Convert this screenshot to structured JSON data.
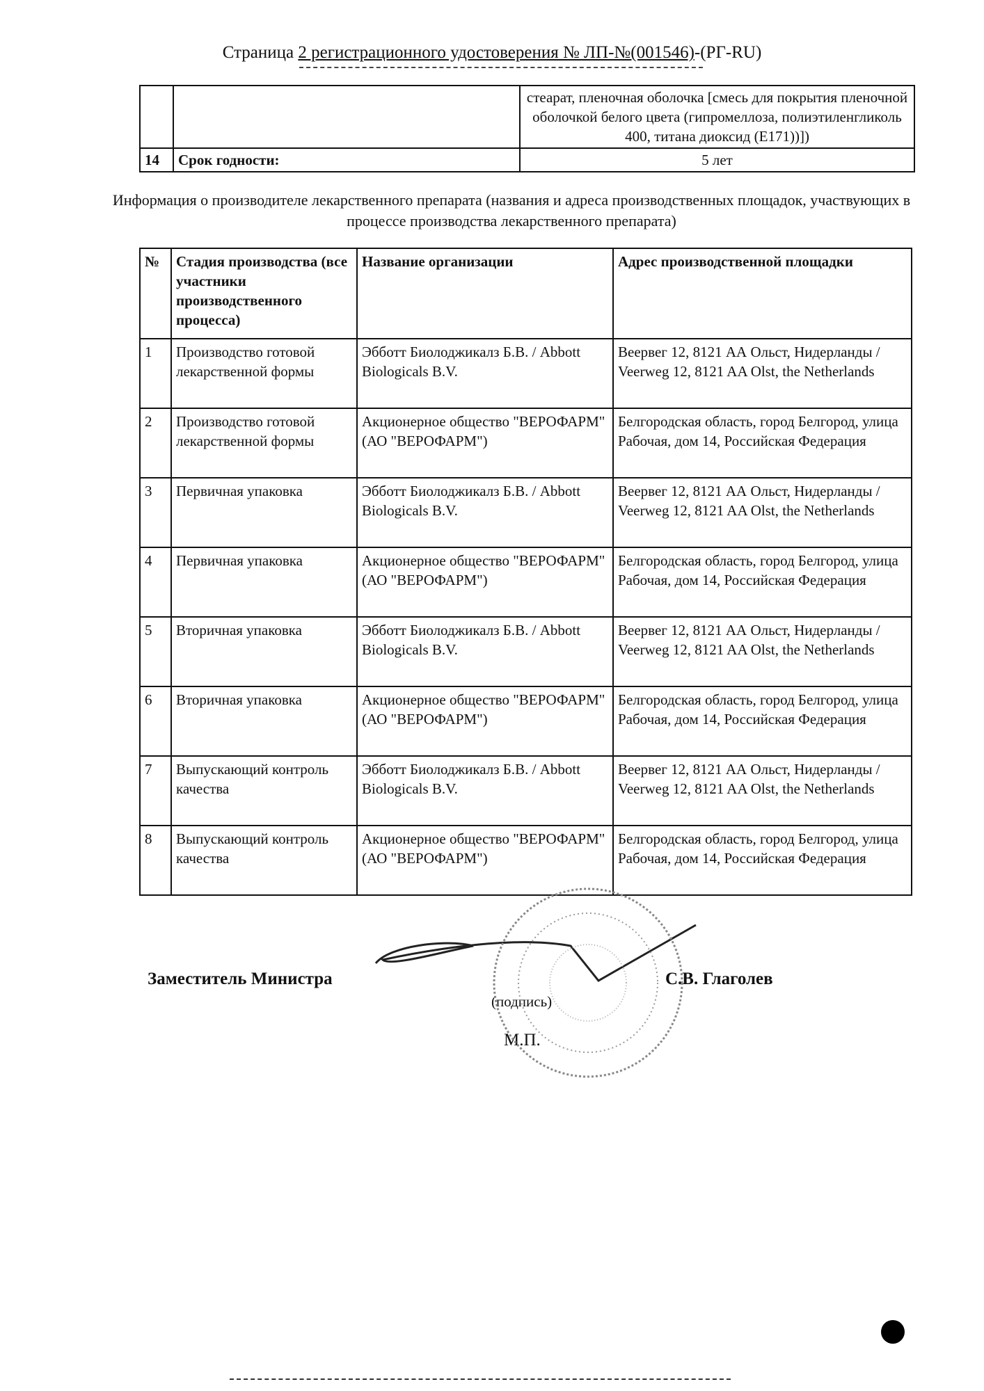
{
  "header": {
    "title_prefix": "Страница ",
    "title_underlined": "2 регистрационного удостоверения № ЛП-№(001546)",
    "title_suffix": "-(РГ-RU)"
  },
  "top_table": {
    "continuation_text": "стеарат, пленочная оболочка [смесь для покрытия пленочной оболочкой белого цвета (гипромеллоза, полиэтиленгликоль 400, титана диоксид (E171))])",
    "row14": {
      "num": "14",
      "label": "Срок годности:",
      "value": "5 лет"
    }
  },
  "info_heading": "Информация о производителе лекарственного препарата (названия и адреса производственных площадок, участвующих в процессе производства лекарственного препарата)",
  "manufacturers": {
    "headers": [
      "№",
      "Стадия производства (все участники производственного процесса)",
      "Название организации",
      "Адрес производственной площадки"
    ],
    "rows": [
      {
        "num": "1",
        "stage": "Производство готовой лекарственной формы",
        "org": "Эбботт Биолоджикалз Б.В. / Abbott Biologicals B.V.",
        "address": "Веервег 12, 8121 АА Ольст, Нидерланды / Veerweg 12, 8121 AA Olst, the Netherlands"
      },
      {
        "num": "2",
        "stage": "Производство готовой лекарственной формы",
        "org": "Акционерное общество \"ВЕРОФАРМ\" (АО \"ВЕРОФАРМ\")",
        "address": "Белгородская область, город Белгород, улица Рабочая, дом 14, Российская Федерация"
      },
      {
        "num": "3",
        "stage": "Первичная упаковка",
        "org": "Эбботт Биолоджикалз Б.В. / Abbott Biologicals B.V.",
        "address": "Веервег 12, 8121 АА Ольст, Нидерланды / Veerweg 12, 8121 AA Olst, the Netherlands"
      },
      {
        "num": "4",
        "stage": "Первичная упаковка",
        "org": "Акционерное общество \"ВЕРОФАРМ\" (АО \"ВЕРОФАРМ\")",
        "address": "Белгородская область, город Белгород, улица Рабочая, дом 14, Российская Федерация"
      },
      {
        "num": "5",
        "stage": "Вторичная упаковка",
        "org": "Эбботт Биолоджикалз Б.В. / Abbott Biologicals B.V.",
        "address": "Веервег 12, 8121 АА Ольст, Нидерланды / Veerweg 12, 8121 AA Olst, the Netherlands"
      },
      {
        "num": "6",
        "stage": "Вторичная упаковка",
        "org": "Акционерное общество \"ВЕРОФАРМ\" (АО \"ВЕРОФАРМ\")",
        "address": "Белгородская область, город Белгород, улица Рабочая, дом 14, Российская Федерация"
      },
      {
        "num": "7",
        "stage": "Выпускающий контроль качества",
        "org": "Эбботт Биолоджикалз Б.В. / Abbott Biologicals B.V.",
        "address": "Веервег 12, 8121 АА Ольст, Нидерланды / Veerweg 12, 8121 AA Olst, the Netherlands"
      },
      {
        "num": "8",
        "stage": "Выпускающий контроль качества",
        "org": "Акционерное общество \"ВЕРОФАРМ\" (АО \"ВЕРОФАРМ\")",
        "address": "Белгородская область, город Белгород, улица Рабочая, дом 14, Российская Федерация"
      }
    ]
  },
  "signature": {
    "position": "Заместитель Министра",
    "name": "С.В. Глаголев",
    "sign_label": "(подпись)",
    "seal_label": "М.П."
  }
}
